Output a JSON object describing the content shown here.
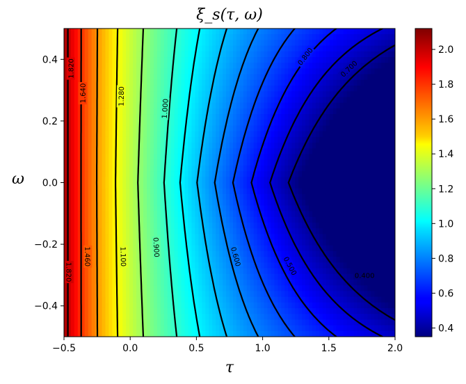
{
  "chart_data": {
    "type": "heatmap",
    "title": "ξ_s(τ, ω)",
    "xlabel": "τ",
    "ylabel": "ω",
    "xlim": [
      -0.5,
      2.0
    ],
    "ylim": [
      -0.5,
      0.5
    ],
    "x_ticks": [
      "−0.5",
      "0.0",
      "0.5",
      "1.0",
      "1.5",
      "2.0"
    ],
    "x_tick_values": [
      -0.5,
      0.0,
      0.5,
      1.0,
      1.5,
      2.0
    ],
    "y_ticks": [
      "−0.4",
      "−0.2",
      "0.0",
      "0.2",
      "0.4"
    ],
    "y_tick_values": [
      -0.4,
      -0.2,
      0.0,
      0.2,
      0.4
    ],
    "colormap": "jet",
    "color_range": [
      0.35,
      2.12
    ],
    "colorbar_ticks": [
      "0.4",
      "0.6",
      "0.8",
      "1.0",
      "1.2",
      "1.4",
      "1.6",
      "1.8",
      "2.0"
    ],
    "colorbar_tick_values": [
      0.4,
      0.6,
      0.8,
      1.0,
      1.2,
      1.4,
      1.6,
      1.8,
      2.0
    ],
    "contour_levels": [
      0.4,
      0.5,
      0.6,
      0.7,
      0.8,
      0.9,
      1.0,
      1.1,
      1.28,
      1.46,
      1.64,
      1.82,
      2.0
    ],
    "contour_labels": [
      {
        "text": "1.820",
        "x": -0.45,
        "y": 0.37
      },
      {
        "text": "1.640",
        "x": -0.36,
        "y": 0.29
      },
      {
        "text": "1.280",
        "x": -0.07,
        "y": 0.28
      },
      {
        "text": "1.000",
        "x": 0.26,
        "y": 0.24
      },
      {
        "text": "0.800",
        "x": 1.32,
        "y": 0.41
      },
      {
        "text": "0.700",
        "x": 1.65,
        "y": 0.37
      },
      {
        "text": "1.460",
        "x": -0.32,
        "y": -0.24
      },
      {
        "text": "1.100",
        "x": -0.05,
        "y": -0.24
      },
      {
        "text": "0.900",
        "x": 0.2,
        "y": -0.21
      },
      {
        "text": "0.600",
        "x": 0.8,
        "y": -0.24
      },
      {
        "text": "0.500",
        "x": 1.21,
        "y": -0.27
      },
      {
        "text": "0.400",
        "x": 1.77,
        "y": -0.3
      },
      {
        "text": "1.820",
        "x": -0.46,
        "y": -0.29
      }
    ]
  }
}
